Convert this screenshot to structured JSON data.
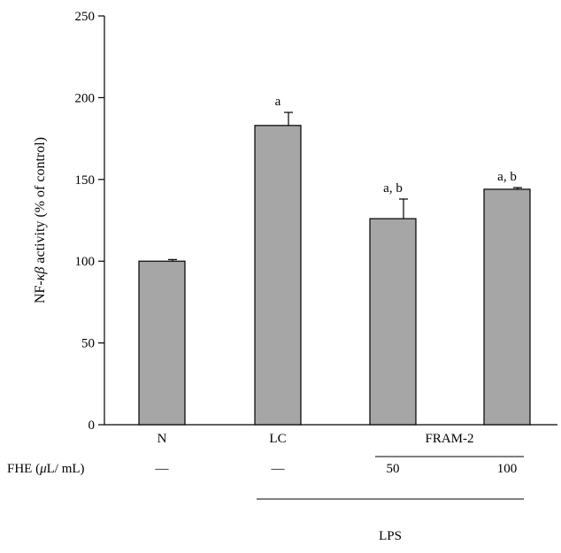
{
  "chart_data": {
    "type": "bar",
    "ylabel_parts": [
      "NF-",
      "κβ",
      " activity (% of control)"
    ],
    "ylim": [
      0,
      250
    ],
    "yticks": [
      0,
      50,
      100,
      150,
      200,
      250
    ],
    "grid": false,
    "bar_color": "#a6a6a6",
    "categories": [
      "N",
      "LC",
      "",
      ""
    ],
    "values": [
      100,
      183,
      126,
      144
    ],
    "errors": [
      1,
      8,
      12,
      1
    ],
    "annotations": [
      "",
      "a",
      "a, b",
      "a, b"
    ],
    "group_label": "FRAM-2",
    "fhe_row": {
      "label_parts": [
        "FHE (",
        "μ",
        "L/ mL)"
      ],
      "values": [
        "—",
        "—",
        "50",
        "100"
      ]
    },
    "lps_label": "LPS"
  }
}
